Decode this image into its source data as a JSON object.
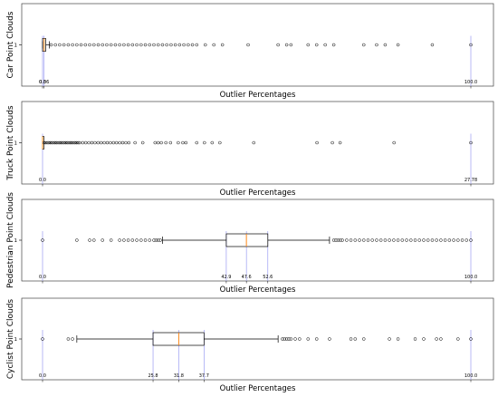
{
  "chart_data": [
    {
      "type": "boxplot",
      "ylabel": "Car Point Clouds",
      "xlabel": "Outlier Percentages",
      "ytick": "1",
      "xlim": [
        0,
        100
      ],
      "box": {
        "whisker_low": 0.0,
        "q1": 0.0,
        "median": 0.36,
        "q3": 0.75,
        "whisker_high": 1.6
      },
      "tick_values": [
        0.0,
        0.36,
        100.0
      ],
      "tick_labels": [
        "0.0",
        "0.36",
        "100.0"
      ],
      "outliers": [
        2,
        3,
        4,
        5,
        6,
        7,
        8,
        9,
        10,
        11,
        12,
        13,
        14,
        15,
        16,
        17,
        18,
        19,
        20,
        21,
        22,
        23,
        24,
        25,
        26,
        27,
        28,
        29,
        30,
        31,
        32,
        33,
        34,
        35,
        36,
        38,
        40,
        42,
        48,
        55,
        57,
        58,
        62,
        64,
        66,
        68,
        75,
        78,
        80,
        83,
        91,
        100
      ]
    },
    {
      "type": "boxplot",
      "ylabel": "Truck Point Clouds",
      "xlabel": "Outlier Percentages",
      "ytick": "1",
      "xlim": [
        0,
        27.78
      ],
      "box": {
        "whisker_low": 0.0,
        "q1": 0.0,
        "median": 0.0,
        "q3": 0.0,
        "whisker_high": 0.0
      },
      "tick_values": [
        0.0,
        27.78
      ],
      "tick_labels": [
        "0.0",
        "27.78"
      ],
      "outliers": [
        0.1,
        0.2,
        0.3,
        0.4,
        0.5,
        0.6,
        0.7,
        0.8,
        0.9,
        1.0,
        1.1,
        1.2,
        1.3,
        1.4,
        1.5,
        1.6,
        1.7,
        1.8,
        1.9,
        2.0,
        2.1,
        2.2,
        2.3,
        2.4,
        2.6,
        2.8,
        3.0,
        3.2,
        3.4,
        3.6,
        3.8,
        4.0,
        4.2,
        4.4,
        4.6,
        4.8,
        5.0,
        5.2,
        5.4,
        5.6,
        6.0,
        6.5,
        7.3,
        7.5,
        7.7,
        8.0,
        8.3,
        8.8,
        9.1,
        9.3,
        10.0,
        10.5,
        11.0,
        11.5,
        13.7,
        17.8,
        18.8,
        19.3,
        22.8,
        27.78
      ]
    },
    {
      "type": "boxplot",
      "ylabel": "Pedestrian Point Clouds",
      "xlabel": "Outlier Percentages",
      "ytick": "1",
      "xlim": [
        0,
        100
      ],
      "box": {
        "whisker_low": 28.0,
        "q1": 42.9,
        "median": 47.6,
        "q3": 52.6,
        "whisker_high": 67.0
      },
      "tick_values": [
        0.0,
        42.9,
        47.6,
        52.6,
        100.0
      ],
      "tick_labels": [
        "0.0",
        "42.9",
        "47.6",
        "52.6",
        "100.0"
      ],
      "outliers": [
        0,
        8,
        11,
        12,
        14,
        16,
        18,
        19,
        20,
        21,
        22,
        23,
        24,
        25,
        26,
        26.5,
        27,
        27.5,
        68,
        68.5,
        69,
        69.5,
        70,
        71,
        72,
        73,
        74,
        75,
        76,
        77,
        78,
        79,
        80,
        81,
        82,
        83,
        84,
        85,
        86,
        87,
        88,
        89,
        90,
        91,
        92,
        93,
        94,
        95,
        96,
        97,
        98,
        99,
        100
      ]
    },
    {
      "type": "boxplot",
      "ylabel": "Cyclist Point Clouds",
      "xlabel": "Outlier Percentages",
      "ytick": "1",
      "xlim": [
        0,
        100
      ],
      "box": {
        "whisker_low": 8.0,
        "q1": 25.8,
        "median": 31.8,
        "q3": 37.7,
        "whisker_high": 55.0
      },
      "tick_values": [
        0.0,
        25.8,
        31.8,
        37.7,
        100.0
      ],
      "tick_labels": [
        "0.0",
        "25.8",
        "31.8",
        "37.7",
        "100.0"
      ],
      "outliers": [
        0,
        6,
        7,
        56,
        56.5,
        57,
        57.5,
        58,
        59,
        60,
        62,
        64,
        67,
        72,
        73,
        75,
        81,
        83,
        87,
        89,
        92,
        93,
        97,
        100
      ]
    }
  ]
}
